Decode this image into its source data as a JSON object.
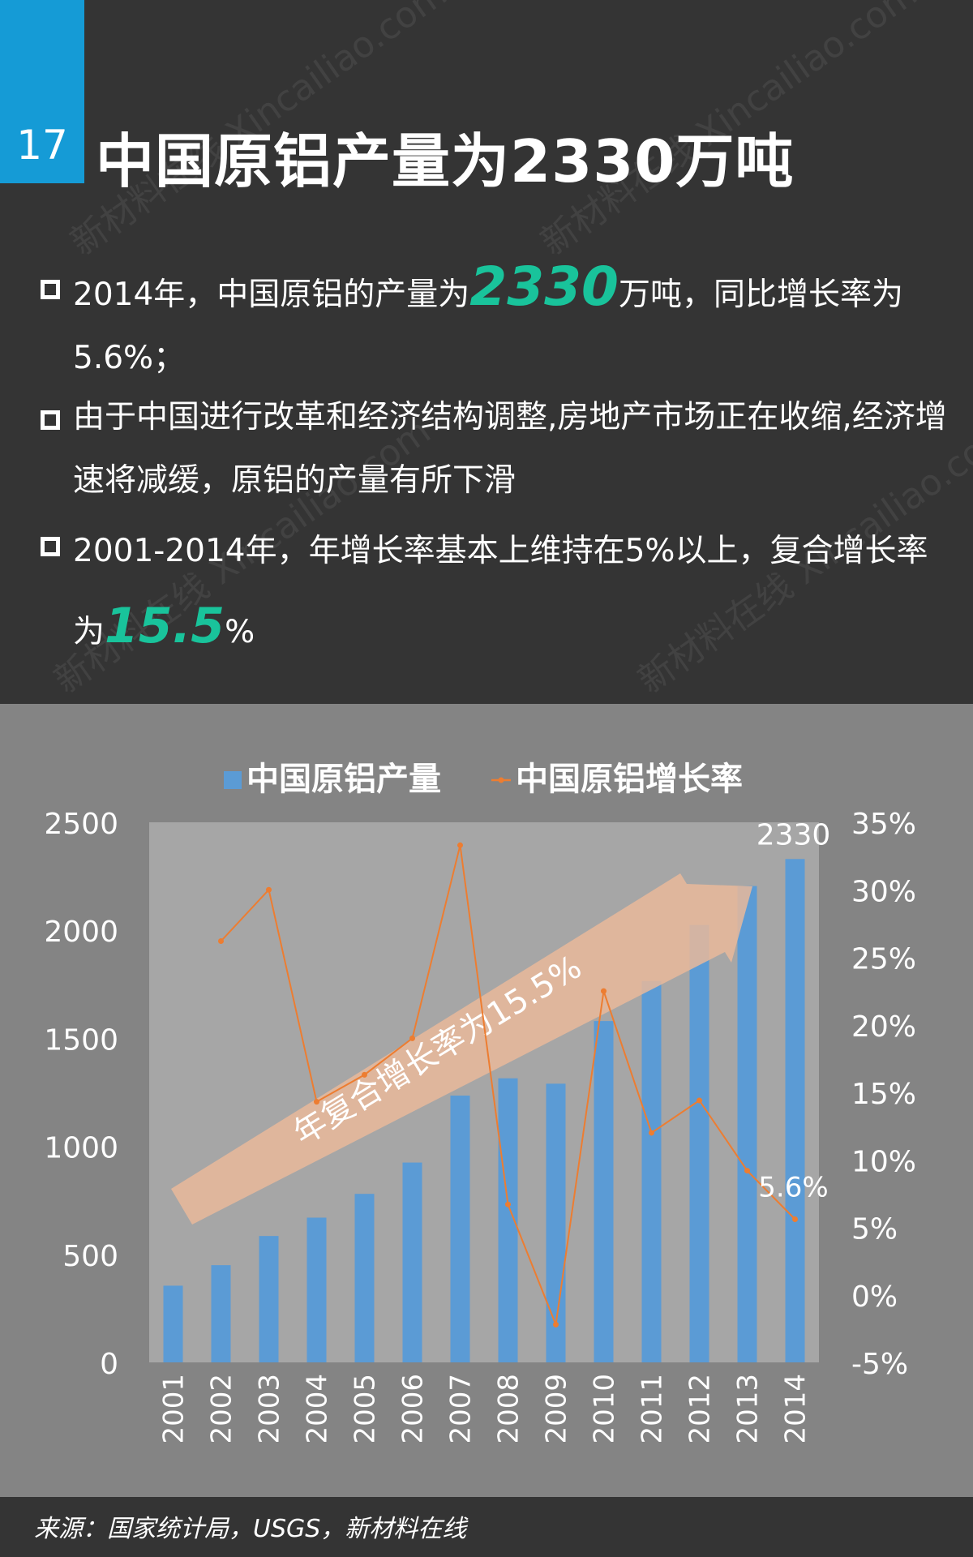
{
  "header": {
    "number": "17",
    "title": "中国原铝产量为2330万吨"
  },
  "watermark": "新材料在线 Xincailiao.com",
  "bullets": [
    {
      "pre": "2014年，中国原铝的产量为",
      "highlight": "2330",
      "post": "万吨，同比增长率为5.6%；"
    },
    {
      "pre": "由于中国进行改革和经济结构调整,房地产市场正在收缩,经济增速将减缓，原铝的产量有所下滑",
      "highlight": "",
      "post": ""
    },
    {
      "pre": "2001-2014年，年增长率基本上维持在5%以上，复合增长率为",
      "highlight": "15.5",
      "post": "%"
    }
  ],
  "chart_data": {
    "type": "bar",
    "categories": [
      "2001",
      "2002",
      "2003",
      "2004",
      "2005",
      "2006",
      "2007",
      "2008",
      "2009",
      "2010",
      "2011",
      "2012",
      "2013",
      "2014"
    ],
    "series": [
      {
        "name": "中国原铝产量",
        "type": "bar",
        "axis": "left",
        "color": "#5b9bd5",
        "values": [
          355,
          450,
          585,
          670,
          780,
          925,
          1235,
          1315,
          1290,
          1580,
          1765,
          2025,
          2205,
          2330
        ]
      },
      {
        "name": "中国原铝增长率",
        "type": "line",
        "axis": "right",
        "color": "#ed7d31",
        "values": [
          null,
          26.2,
          30.0,
          14.3,
          16.3,
          19.0,
          33.3,
          6.7,
          -2.2,
          22.5,
          12.0,
          14.4,
          9.2,
          5.6
        ]
      }
    ],
    "y_left": {
      "min": 0,
      "max": 2500,
      "ticks": [
        "0",
        "500",
        "1000",
        "1500",
        "2000",
        "2500"
      ]
    },
    "y_right": {
      "min": -5,
      "max": 35,
      "ticks": [
        "-5%",
        "0%",
        "5%",
        "10%",
        "15%",
        "20%",
        "25%",
        "30%",
        "35%"
      ]
    },
    "data_labels": {
      "bar_last": "2330",
      "line_last": "5.6%"
    },
    "arrow_annotation": "年复合增长率为15.5%",
    "legend_position": "top"
  },
  "footer": {
    "source": "来源：国家统计局，USGS，新材料在线"
  },
  "colors": {
    "accent_blue": "#159bd6",
    "highlight_green": "#19c39b",
    "bar": "#5b9bd5",
    "line": "#ed7d31",
    "arrow": "#e9b99a"
  }
}
